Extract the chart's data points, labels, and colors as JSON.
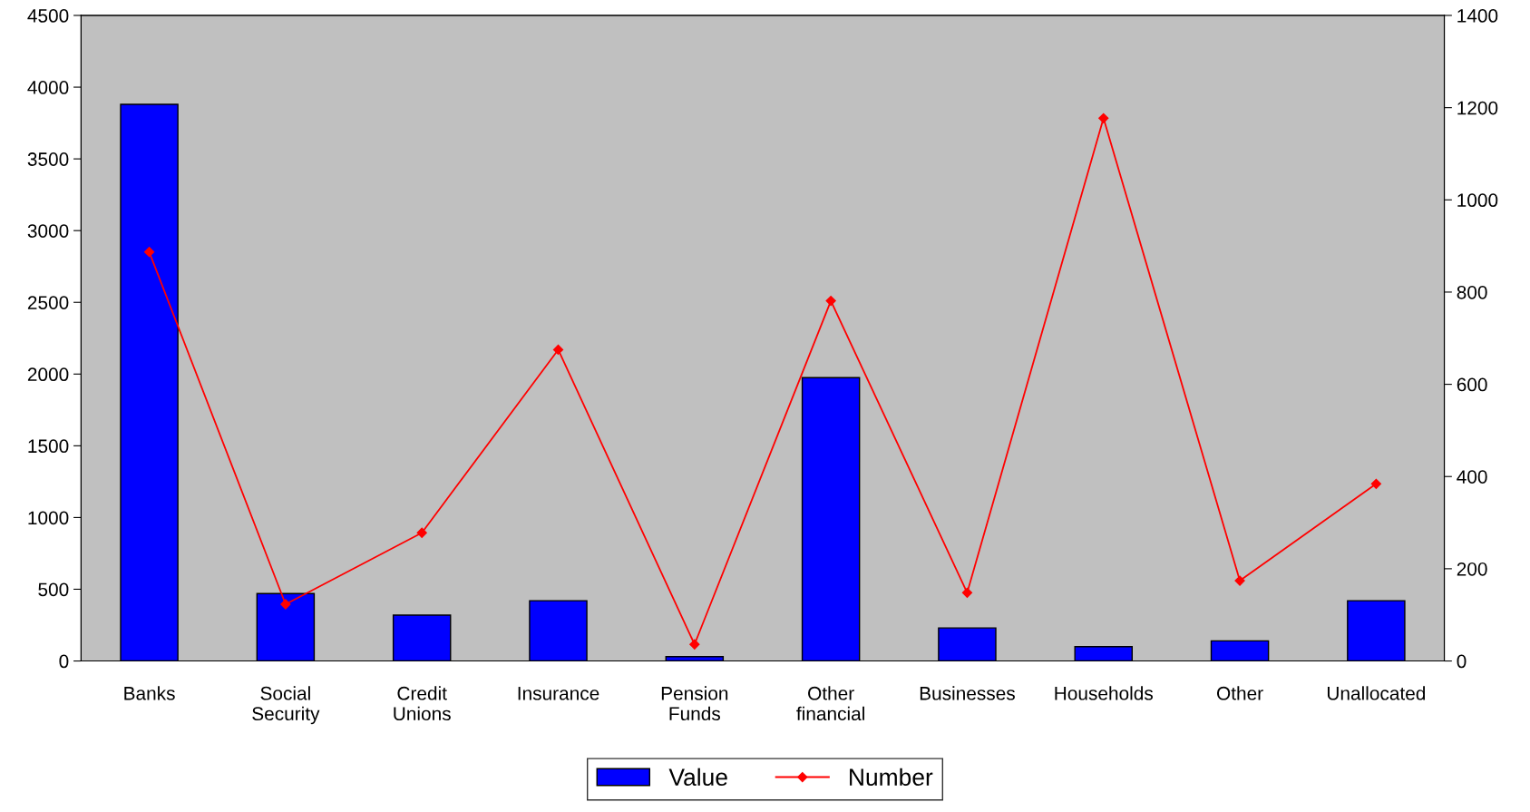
{
  "chart_data": {
    "type": "bar",
    "categories": [
      "Banks",
      "Social\nSecurity",
      "Credit\nUnions",
      "Insurance",
      "Pension\nFunds",
      "Other\nfinancial",
      "Businesses",
      "Households",
      "Other",
      "Unallocated"
    ],
    "series": [
      {
        "name": "Value",
        "color": "#0000ff",
        "values": [
          3880,
          470,
          320,
          420,
          30,
          1975,
          230,
          100,
          140,
          420
        ]
      },
      {
        "name": "Number",
        "type": "line",
        "axis": "y2",
        "color": "#ff0000",
        "marker": "diamond",
        "values": [
          887,
          123,
          278,
          675,
          36,
          781,
          148,
          1177,
          174,
          384
        ]
      }
    ],
    "ylim": [
      0,
      4500
    ],
    "yticks": [
      0,
      500,
      1000,
      1500,
      2000,
      2500,
      3000,
      3500,
      4000,
      4500
    ],
    "y2lim": [
      0,
      1400
    ],
    "y2ticks": [
      0,
      200,
      400,
      600,
      800,
      1000,
      1200,
      1400
    ],
    "grid": false,
    "legend": "bottom"
  }
}
